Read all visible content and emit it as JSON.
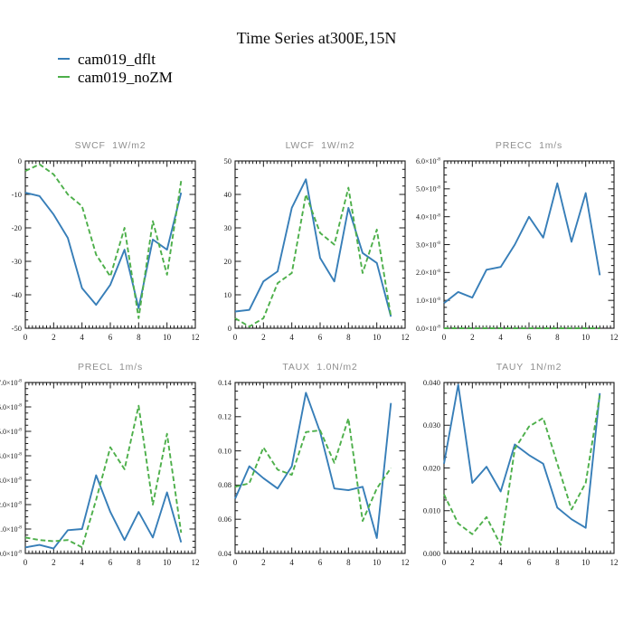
{
  "title": "Time Series at300E,15N",
  "legend": {
    "items": [
      {
        "label": "cam019_dflt",
        "color": "#377eb8"
      },
      {
        "label": "cam019_noZM",
        "color": "#4daf4a"
      }
    ]
  },
  "colors": {
    "axis": "#1a1a1a",
    "tick_label": "#1a1a1a",
    "subplot_title": "#8f8f8f",
    "series_blue": "#377eb8",
    "series_green": "#4daf4a"
  },
  "chart_data": [
    {
      "type": "line",
      "title": "SWCF  1W/m2",
      "x": [
        0,
        1,
        2,
        3,
        4,
        5,
        6,
        7,
        8,
        9,
        10,
        11
      ],
      "series": [
        {
          "name": "cam019_dflt",
          "color": "#377eb8",
          "style": "solid",
          "values": [
            -9.5,
            -10.5,
            -16,
            -23,
            -38,
            -43,
            -37,
            -26.5,
            -44,
            -23.5,
            -26.5,
            -9.5
          ]
        },
        {
          "name": "cam019_noZM",
          "color": "#4daf4a",
          "style": "dashed",
          "values": [
            -3,
            -1,
            -4,
            -10,
            -13.5,
            -28,
            -34.5,
            -20,
            -47,
            -18,
            -34,
            -6
          ]
        }
      ],
      "xlim": [
        0,
        12
      ],
      "ylim": [
        -50,
        0
      ],
      "xticks": [
        0,
        2,
        4,
        6,
        8,
        10,
        12
      ],
      "xtick_labels": [
        "0",
        "2",
        "4",
        "6",
        "8",
        "10",
        "12"
      ],
      "yticks": [
        -50,
        -40,
        -30,
        -20,
        -10,
        0
      ],
      "ytick_labels": [
        "-50",
        "-40",
        "-30",
        "-20",
        "-10",
        "0"
      ],
      "x_minor_step": 0.25,
      "y_minor_step": 2.5,
      "grid": false
    },
    {
      "type": "line",
      "title": "LWCF  1W/m2",
      "x": [
        0,
        1,
        2,
        3,
        4,
        5,
        6,
        7,
        8,
        9,
        10,
        11
      ],
      "series": [
        {
          "name": "cam019_dflt",
          "color": "#377eb8",
          "style": "solid",
          "values": [
            5,
            5.5,
            14,
            17,
            36,
            44.5,
            21,
            14,
            36,
            22.5,
            19.5,
            3.5
          ]
        },
        {
          "name": "cam019_noZM",
          "color": "#4daf4a",
          "style": "dashed",
          "values": [
            3,
            0.5,
            3,
            13.5,
            16.5,
            40,
            28.5,
            25,
            42,
            16.5,
            29.5,
            3.5
          ]
        }
      ],
      "xlim": [
        0,
        12
      ],
      "ylim": [
        0,
        50
      ],
      "xticks": [
        0,
        2,
        4,
        6,
        8,
        10,
        12
      ],
      "xtick_labels": [
        "0",
        "2",
        "4",
        "6",
        "8",
        "10",
        "12"
      ],
      "yticks": [
        0,
        10,
        20,
        30,
        40,
        50
      ],
      "ytick_labels": [
        "0",
        "10",
        "20",
        "30",
        "40",
        "50"
      ],
      "x_minor_step": 0.25,
      "y_minor_step": 2.5,
      "grid": false
    },
    {
      "type": "line",
      "title": "PRECC  1m/s",
      "x": [
        0,
        1,
        2,
        3,
        4,
        5,
        6,
        7,
        8,
        9,
        10,
        11
      ],
      "series": [
        {
          "name": "cam019_dflt",
          "color": "#377eb8",
          "style": "solid",
          "values": [
            9e-09,
            1.3e-08,
            1.1e-08,
            2.1e-08,
            2.2e-08,
            3e-08,
            4e-08,
            3.25e-08,
            5.2e-08,
            3.1e-08,
            4.85e-08,
            1.9e-08
          ]
        },
        {
          "name": "cam019_noZM",
          "color": "#4daf4a",
          "style": "dashed",
          "values": [
            0,
            0,
            0,
            0,
            0,
            0,
            0,
            0,
            0,
            0,
            0,
            0
          ]
        }
      ],
      "xlim": [
        0,
        12
      ],
      "ylim": [
        0,
        6e-08
      ],
      "xticks": [
        0,
        2,
        4,
        6,
        8,
        10,
        12
      ],
      "xtick_labels": [
        "0",
        "2",
        "4",
        "6",
        "8",
        "10",
        "12"
      ],
      "yticks": [
        0,
        1e-08,
        2e-08,
        3e-08,
        4e-08,
        5e-08,
        6e-08
      ],
      "ytick_labels": [
        "0.0×10^-8",
        "1.0×10^-8",
        "2.0×10^-8",
        "3.0×10^-8",
        "4.0×10^-8",
        "5.0×10^-8",
        "6.0×10^-8"
      ],
      "x_minor_step": 0.25,
      "y_minor_step": 2.5e-09,
      "grid": false
    },
    {
      "type": "line",
      "title": "PRECL  1m/s",
      "x": [
        0,
        1,
        2,
        3,
        4,
        5,
        6,
        7,
        8,
        9,
        10,
        11
      ],
      "series": [
        {
          "name": "cam019_dflt",
          "color": "#377eb8",
          "style": "solid",
          "values": [
            2.5e-09,
            3.5e-09,
            2e-09,
            9.5e-09,
            1e-08,
            3.2e-08,
            1.7e-08,
            5.5e-09,
            1.7e-08,
            6.5e-09,
            2.5e-08,
            4.5e-09
          ]
        },
        {
          "name": "cam019_noZM",
          "color": "#4daf4a",
          "style": "dashed",
          "values": [
            6.5e-09,
            5.5e-09,
            5e-09,
            5.5e-09,
            2.5e-09,
            2.2e-08,
            4.35e-08,
            3.45e-08,
            6.05e-08,
            2e-08,
            4.9e-08,
            8.5e-09
          ]
        }
      ],
      "xlim": [
        0,
        12
      ],
      "ylim": [
        0,
        7e-08
      ],
      "xticks": [
        0,
        2,
        4,
        6,
        8,
        10,
        12
      ],
      "xtick_labels": [
        "0",
        "2",
        "4",
        "6",
        "8",
        "10",
        "12"
      ],
      "yticks": [
        0,
        1e-08,
        2e-08,
        3e-08,
        4e-08,
        5e-08,
        6e-08,
        7e-08
      ],
      "ytick_labels": [
        "0.0×10^-8",
        "1.0×10^-8",
        "2.0×10^-8",
        "3.0×10^-8",
        "4.0×10^-8",
        "5.0×10^-8",
        "6.0×10^-8",
        "7.0×10^-8"
      ],
      "x_minor_step": 0.25,
      "y_minor_step": 2.5e-09,
      "grid": false
    },
    {
      "type": "line",
      "title": "TAUX  1.0N/m2",
      "x": [
        0,
        1,
        2,
        3,
        4,
        5,
        6,
        7,
        8,
        9,
        10,
        11
      ],
      "series": [
        {
          "name": "cam019_dflt",
          "color": "#377eb8",
          "style": "solid",
          "values": [
            0.072,
            0.091,
            0.084,
            0.078,
            0.091,
            0.134,
            0.111,
            0.078,
            0.077,
            0.079,
            0.049,
            0.128
          ]
        },
        {
          "name": "cam019_noZM",
          "color": "#4daf4a",
          "style": "dashed",
          "values": [
            0.079,
            0.081,
            0.102,
            0.089,
            0.086,
            0.111,
            0.112,
            0.093,
            0.119,
            0.059,
            0.078,
            0.09
          ]
        }
      ],
      "xlim": [
        0,
        12
      ],
      "ylim": [
        0.04,
        0.14
      ],
      "xticks": [
        0,
        2,
        4,
        6,
        8,
        10,
        12
      ],
      "xtick_labels": [
        "0",
        "2",
        "4",
        "6",
        "8",
        "10",
        "12"
      ],
      "yticks": [
        0.04,
        0.06,
        0.08,
        0.1,
        0.12,
        0.14
      ],
      "ytick_labels": [
        "0.04",
        "0.06",
        "0.08",
        "0.10",
        "0.12",
        "0.14"
      ],
      "x_minor_step": 0.25,
      "y_minor_step": 0.005,
      "grid": false
    },
    {
      "type": "line",
      "title": "TAUY  1N/m2",
      "x": [
        0,
        1,
        2,
        3,
        4,
        5,
        6,
        7,
        8,
        9,
        10,
        11
      ],
      "series": [
        {
          "name": "cam019_dflt",
          "color": "#377eb8",
          "style": "solid",
          "values": [
            0.021,
            0.0395,
            0.0165,
            0.0203,
            0.0145,
            0.0255,
            0.023,
            0.021,
            0.0107,
            0.008,
            0.006,
            0.0375
          ]
        },
        {
          "name": "cam019_noZM",
          "color": "#4daf4a",
          "style": "dashed",
          "values": [
            0.0138,
            0.007,
            0.0045,
            0.0085,
            0.002,
            0.0245,
            0.0297,
            0.0317,
            0.021,
            0.0103,
            0.0165,
            0.037
          ]
        }
      ],
      "xlim": [
        0,
        12
      ],
      "ylim": [
        0,
        0.04
      ],
      "xticks": [
        0,
        2,
        4,
        6,
        8,
        10,
        12
      ],
      "xtick_labels": [
        "0",
        "2",
        "4",
        "6",
        "8",
        "10",
        "12"
      ],
      "yticks": [
        0,
        0.01,
        0.02,
        0.03,
        0.04
      ],
      "ytick_labels": [
        "0.000",
        "0.010",
        "0.020",
        "0.030",
        "0.040"
      ],
      "x_minor_step": 0.25,
      "y_minor_step": 0.0025,
      "grid": false
    }
  ]
}
